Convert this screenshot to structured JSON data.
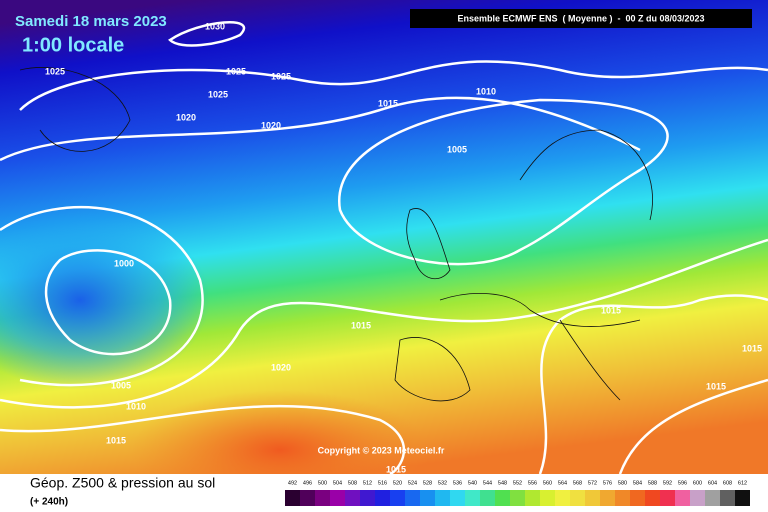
{
  "header": {
    "date": "Samedi 18 mars 2023",
    "time": "1:00 locale",
    "source": "Ensemble ECMWF ENS  ( Moyenne )  -  00 Z du 08/03/2023"
  },
  "isobar_labels": [
    "1030",
    "1025",
    "1025",
    "1025",
    "1025",
    "1020",
    "1020",
    "1015",
    "1010",
    "1005",
    "1000",
    "1015",
    "1015",
    "1015",
    "1015",
    "1020",
    "1005",
    "1010",
    "1015",
    "1015"
  ],
  "copyright": "Copyright © 2023 Meteociel.fr",
  "footer": {
    "title": "Géop. Z500 & pression au sol",
    "subtitle": "(+ 240h)"
  },
  "scale": {
    "labels": [
      "492",
      "496",
      "500",
      "504",
      "508",
      "512",
      "516",
      "520",
      "524",
      "528",
      "532",
      "536",
      "540",
      "544",
      "548",
      "552",
      "556",
      "560",
      "564",
      "568",
      "572",
      "576",
      "580",
      "584",
      "588",
      "592",
      "596",
      "600",
      "604",
      "608",
      "612"
    ],
    "colors": [
      "#2a0030",
      "#50005a",
      "#7a0080",
      "#9a00a8",
      "#7010c0",
      "#4018d0",
      "#2020e0",
      "#1840f0",
      "#1868f0",
      "#1890f0",
      "#20b8f0",
      "#30d8f0",
      "#40e8c8",
      "#40e090",
      "#50e050",
      "#80e040",
      "#b0e830",
      "#d8f030",
      "#f0f040",
      "#f0e040",
      "#f0c838",
      "#f0a830",
      "#f08828",
      "#f06820",
      "#f04820",
      "#f03050",
      "#f060a0",
      "#c8a0c8",
      "#a0a0a0",
      "#606060",
      "#101010"
    ]
  }
}
